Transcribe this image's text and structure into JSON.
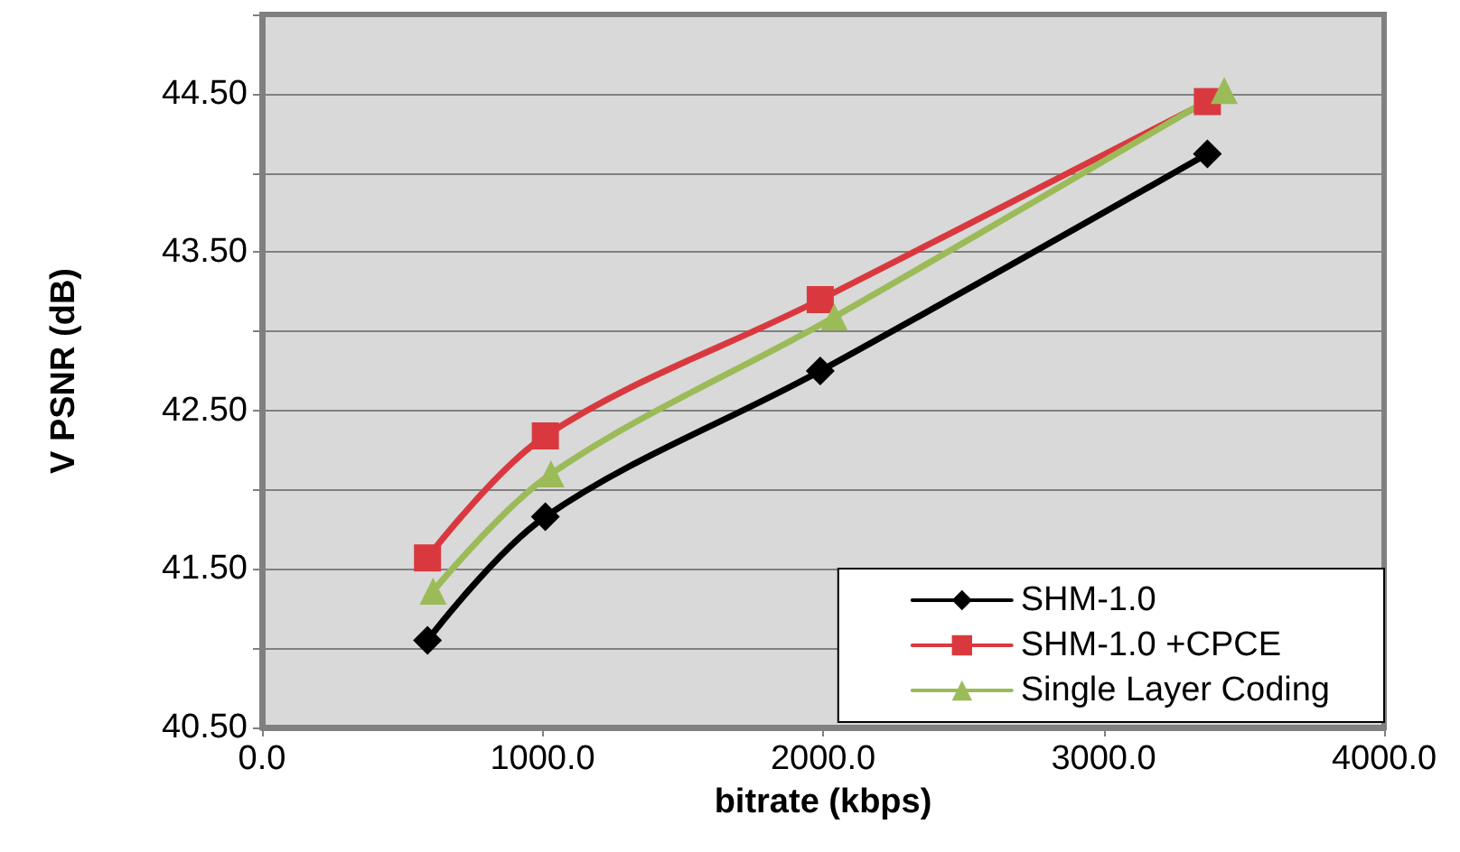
{
  "chart_data": {
    "type": "line",
    "xlabel": "bitrate (kbps)",
    "ylabel": "V PSNR (dB)",
    "xlim": [
      0,
      4000
    ],
    "xticks": [
      {
        "value": 0,
        "label": "0.0"
      },
      {
        "value": 1000,
        "label": "1000.0"
      },
      {
        "value": 2000,
        "label": "2000.0"
      },
      {
        "value": 3000,
        "label": "3000.0"
      },
      {
        "value": 4000,
        "label": "4000.0"
      }
    ],
    "ylim": [
      40.5,
      45
    ],
    "yticks": [
      {
        "value": 40.5,
        "label": "40.50"
      },
      {
        "value": 41,
        "label": null
      },
      {
        "value": 41.5,
        "label": "41.50"
      },
      {
        "value": 42,
        "label": null
      },
      {
        "value": 42.5,
        "label": "42.50"
      },
      {
        "value": 43,
        "label": null
      },
      {
        "value": 43.5,
        "label": "43.50"
      },
      {
        "value": 44,
        "label": null
      },
      {
        "value": 44.5,
        "label": "44.50"
      },
      {
        "value": 45,
        "label": null
      }
    ],
    "grid": "y",
    "legend": "bottom right",
    "series": [
      {
        "name": "SHM-1.0",
        "color": "#000000",
        "marker": "diamond",
        "x": [
          590,
          1010,
          1990,
          3370
        ],
        "values": [
          41.05,
          41.83,
          42.75,
          44.12
        ]
      },
      {
        "name": "SHM-1.0 +CPCE",
        "color": "#d9393e",
        "marker": "square",
        "x": [
          590,
          1010,
          1990,
          3370
        ],
        "values": [
          41.57,
          42.34,
          43.2,
          44.45
        ]
      },
      {
        "name": "Single Layer Coding",
        "color": "#9bbb59",
        "marker": "triangle",
        "x": [
          610,
          1030,
          2040,
          3430
        ],
        "values": [
          41.36,
          42.1,
          43.09,
          44.52
        ]
      }
    ]
  }
}
